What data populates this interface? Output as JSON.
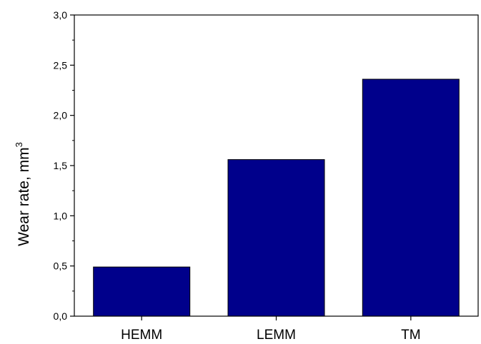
{
  "chart_data": {
    "type": "bar",
    "title": "",
    "xlabel": "",
    "ylabel": "Wear rate, mm",
    "ylabel_superscript": "3",
    "categories": [
      "HEMM",
      "LEMM",
      "TM"
    ],
    "values": [
      0.49,
      1.56,
      2.36
    ],
    "ylim": [
      0,
      3.0
    ],
    "yticks": [
      0.0,
      0.5,
      1.0,
      1.5,
      2.0,
      2.5,
      3.0
    ],
    "ytick_labels": [
      "0,0",
      "0,5",
      "1,0",
      "1,5",
      "2,0",
      "2,5",
      "3,0"
    ],
    "grid": false,
    "legend": "none",
    "colors": {
      "bar_fill": "#00008b",
      "bar_stroke": "#000000",
      "axis": "#000000"
    }
  }
}
